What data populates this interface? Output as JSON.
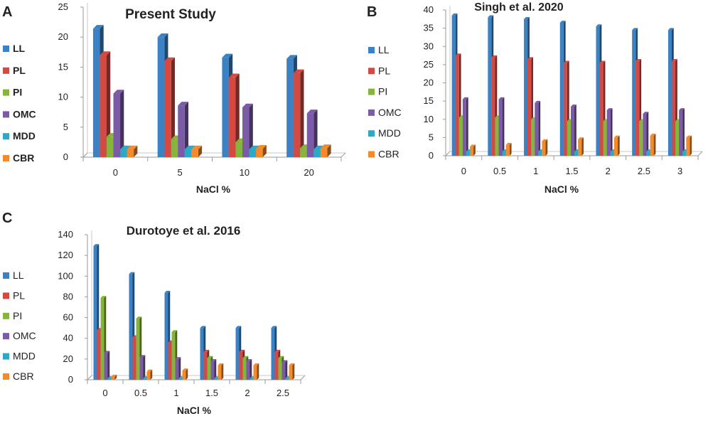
{
  "chart_data": [
    {
      "panel": "A",
      "type": "bar",
      "title": "Present Study",
      "xlabel": "NaCl %",
      "ylabel": "",
      "ylim": [
        0,
        25
      ],
      "yticks": [
        0,
        5,
        10,
        15,
        20,
        25
      ],
      "categories": [
        "0",
        "5",
        "10",
        "20"
      ],
      "series": [
        {
          "name": "LL",
          "values": [
            21.4,
            20.0,
            16.6,
            16.4
          ]
        },
        {
          "name": "PL",
          "values": [
            17.0,
            16.0,
            13.3,
            14.0
          ]
        },
        {
          "name": "PI",
          "values": [
            3.4,
            3.0,
            2.5,
            1.5
          ]
        },
        {
          "name": "OMC",
          "values": [
            10.6,
            8.6,
            8.3,
            7.3
          ]
        },
        {
          "name": "MDD",
          "values": [
            1.3,
            1.3,
            1.3,
            1.3
          ]
        },
        {
          "name": "CBR",
          "values": [
            1.3,
            1.3,
            1.4,
            1.5
          ]
        }
      ]
    },
    {
      "panel": "B",
      "type": "bar",
      "title": "Singh et al. 2020",
      "xlabel": "NaCl %",
      "ylabel": "",
      "ylim": [
        0,
        40
      ],
      "yticks": [
        0,
        5,
        10,
        15,
        20,
        25,
        30,
        35,
        40
      ],
      "categories": [
        "0",
        "0.5",
        "1",
        "1.5",
        "2",
        "2.5",
        "3"
      ],
      "series": [
        {
          "name": "LL",
          "values": [
            38.5,
            38.0,
            37.5,
            36.5,
            35.5,
            34.5,
            34.5
          ]
        },
        {
          "name": "PL",
          "values": [
            27.5,
            27.0,
            26.5,
            25.5,
            25.5,
            26.0,
            26.0
          ]
        },
        {
          "name": "PI",
          "values": [
            10.5,
            10.5,
            10.0,
            9.5,
            9.5,
            9.5,
            9.5
          ]
        },
        {
          "name": "OMC",
          "values": [
            15.5,
            15.5,
            14.5,
            13.5,
            12.5,
            11.5,
            12.5
          ]
        },
        {
          "name": "MDD",
          "values": [
            1.2,
            1.2,
            1.2,
            1.2,
            1.2,
            1.2,
            1.2
          ]
        },
        {
          "name": "CBR",
          "values": [
            2.5,
            3.0,
            4.0,
            4.5,
            5.0,
            5.5,
            5.0
          ]
        }
      ]
    },
    {
      "panel": "C",
      "type": "bar",
      "title": "Durotoye et al. 2016",
      "xlabel": "NaCl %",
      "ylabel": "",
      "ylim": [
        0,
        140
      ],
      "yticks": [
        0,
        20,
        40,
        60,
        80,
        100,
        120,
        140
      ],
      "categories": [
        "0",
        "0.5",
        "1",
        "1.5",
        "2",
        "2.5"
      ],
      "series": [
        {
          "name": "LL",
          "values": [
            129,
            102,
            84,
            50,
            50,
            50
          ]
        },
        {
          "name": "PL",
          "values": [
            48,
            41,
            36,
            27,
            27,
            27
          ]
        },
        {
          "name": "PI",
          "values": [
            79,
            59,
            46,
            21,
            21,
            21
          ]
        },
        {
          "name": "OMC",
          "values": [
            26,
            22,
            20,
            18,
            18,
            17
          ]
        },
        {
          "name": "MDD",
          "values": [
            1.5,
            1.5,
            1.5,
            1.5,
            1.5,
            1.5
          ]
        },
        {
          "name": "CBR",
          "values": [
            3,
            8,
            9,
            14,
            14,
            14
          ]
        }
      ]
    }
  ],
  "colors": {
    "LL": "#3a82c4",
    "PL": "#d44a43",
    "PI": "#86b43c",
    "OMC": "#7b5aa6",
    "MDD": "#2ba9c8",
    "CBR": "#f58a2b"
  }
}
